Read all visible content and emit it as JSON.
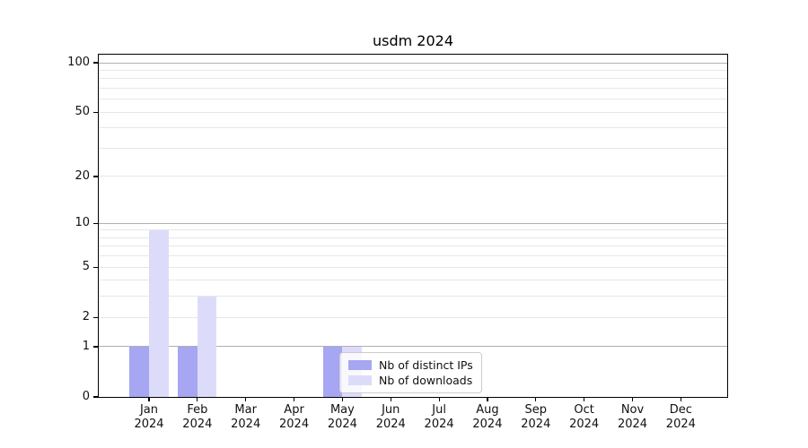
{
  "chart_data": {
    "type": "bar",
    "title": "usdm 2024",
    "categories_months": [
      "Jan",
      "Feb",
      "Mar",
      "Apr",
      "May",
      "Jun",
      "Jul",
      "Aug",
      "Sep",
      "Oct",
      "Nov",
      "Dec"
    ],
    "categories_year": "2024",
    "series": [
      {
        "name": "Nb of distinct IPs",
        "color": "#a6a6f2",
        "values": [
          1,
          1,
          0,
          0,
          1,
          0,
          0,
          0,
          0,
          0,
          0,
          0
        ]
      },
      {
        "name": "Nb of downloads",
        "color": "#dcdcfa",
        "values": [
          9,
          3,
          0,
          0,
          1,
          0,
          0,
          0,
          0,
          0,
          0,
          0
        ]
      }
    ],
    "yticks": [
      0,
      1,
      2,
      5,
      10,
      20,
      50,
      100
    ],
    "gridlines": {
      "major": [
        1,
        10,
        100
      ],
      "minor": [
        2,
        3,
        4,
        5,
        6,
        7,
        8,
        9,
        20,
        30,
        40,
        50,
        60,
        70,
        80,
        90
      ]
    },
    "scale": "log1p",
    "ylim": [
      0,
      112
    ],
    "grid_on": true,
    "legend_position": "inside-bottom-center",
    "colors": {
      "grid_major": "#b0b0b0",
      "grid_minor": "#e7e7e7",
      "axis": "#000000",
      "background": "#ffffff",
      "text": "#111111"
    }
  }
}
